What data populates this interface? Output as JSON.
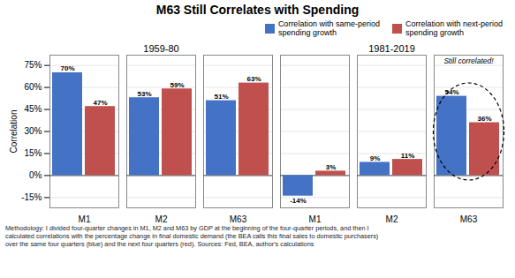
{
  "chart_data": {
    "type": "bar",
    "title": "M63 Still Correlates with Spending",
    "categories": [
      "M1",
      "M2",
      "M63",
      "M1",
      "M2",
      "M63"
    ],
    "category_groups": [
      "1959-80",
      "1959-80",
      "1959-80",
      "1981-2019",
      "1981-2019",
      "1981-2019"
    ],
    "series": [
      {
        "name": "Correlation with same-period\nspending growth",
        "color": "#4472C4",
        "values": [
          70,
          53,
          51,
          -14,
          9,
          54
        ],
        "value_labels": [
          "70%",
          "53%",
          "51%",
          "-14%",
          "9%",
          "54%"
        ]
      },
      {
        "name": "Correlation with next-period\nspending growth",
        "color": "#C0504D",
        "values": [
          47,
          59,
          63,
          3,
          11,
          36
        ],
        "value_labels": [
          "47%",
          "59%",
          "63%",
          "3%",
          "11%",
          "36%"
        ]
      }
    ],
    "ylabel": "Correlation",
    "ylim": [
      -22,
      82
    ],
    "yticks": [
      {
        "value": -15,
        "label": "-15%"
      },
      {
        "value": 0,
        "label": "0%"
      },
      {
        "value": 15,
        "label": "15%"
      },
      {
        "value": 30,
        "label": "30%"
      },
      {
        "value": 45,
        "label": "45%"
      },
      {
        "value": 60,
        "label": "60%"
      },
      {
        "value": 75,
        "label": "75%"
      }
    ],
    "grid": true,
    "legend": "upper right",
    "data_labels": true,
    "annotations": [
      {
        "text": "Still correlated!",
        "x": 5
      }
    ],
    "footnote": "Methodology: I divided four-quarter changes in M1, M2 and M63 by GDP at the beginning of the four-quarter periods, and then I\ncalculated correlations with the percentage change in final domestic demand (the BEA calls this final sales to domestic purchasers)\nover the same four quarters (blue) and the next four quarters (red). Sources: Fed, BEA, author's calculations"
  }
}
